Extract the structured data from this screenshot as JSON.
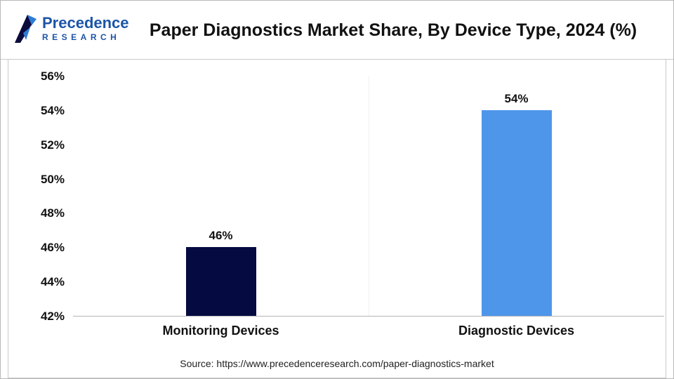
{
  "header": {
    "logo_line1": "Precedence",
    "logo_line2": "RESEARCH",
    "title": "Paper Diagnostics Market Share, By Device Type, 2024 (%)"
  },
  "colors": {
    "logo_blue": "#1b55a8",
    "bar_monitoring": "#050a41",
    "bar_diagnostic": "#4e96ea"
  },
  "chart_data": {
    "type": "bar",
    "title": "Paper Diagnostics Market Share, By Device Type, 2024 (%)",
    "categories": [
      "Monitoring Devices",
      "Diagnostic Devices"
    ],
    "values": [
      46,
      54
    ],
    "value_labels": [
      "46%",
      "54%"
    ],
    "bar_colors": [
      "#050a41",
      "#4e96ea"
    ],
    "ylim": [
      42,
      56
    ],
    "ytick_step": 2,
    "ytick_labels": [
      "56%",
      "54%",
      "52%",
      "50%",
      "48%",
      "46%",
      "44%",
      "42%"
    ],
    "grid": false,
    "legend": "none",
    "xlabel": "",
    "ylabel": ""
  },
  "footer": {
    "source": "Source: https://www.precedenceresearch.com/paper-diagnostics-market"
  }
}
